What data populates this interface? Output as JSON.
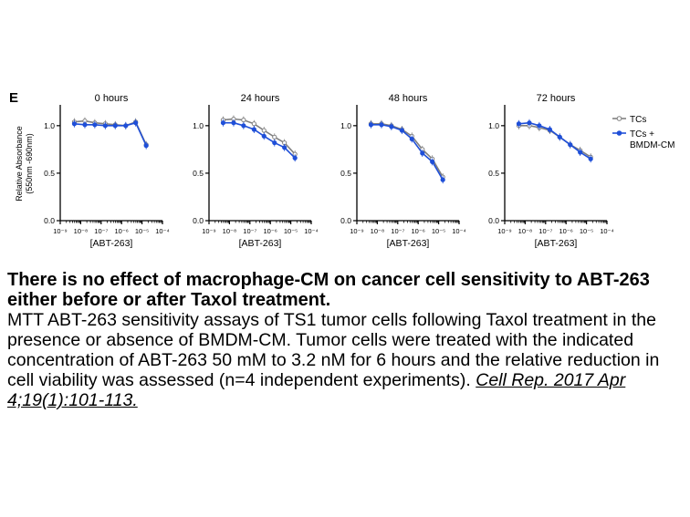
{
  "panel_label": "E",
  "chart_data": [
    {
      "type": "line",
      "title": "0 hours",
      "xlabel": "[ABT-263]",
      "ylabel": "Relative Absorbance (550nm -690nm)",
      "xscale": "log",
      "xlim": [
        1e-09,
        0.0001
      ],
      "ylim": [
        0,
        1.2
      ],
      "x_tick_labels": [
        "10⁻⁹",
        "10⁻⁸",
        "10⁻⁷",
        "10⁻⁶",
        "10⁻⁵",
        "10⁻⁴"
      ],
      "y_tick_labels": [
        "0.0",
        "0.5",
        "1.0"
      ],
      "series": [
        {
          "name": "TCs",
          "color": "#808080",
          "marker": "open-circle",
          "points": [
            [
              4.9e-09,
              1.04
            ],
            [
              1.6e-08,
              1.05
            ],
            [
              4.9e-08,
              1.03
            ],
            [
              1.6e-07,
              1.02
            ],
            [
              4.9e-07,
              1.01
            ],
            [
              1.6e-06,
              1.0
            ],
            [
              4.9e-06,
              1.04
            ],
            [
              1.6e-05,
              0.8
            ]
          ]
        },
        {
          "name": "TCs + BMDM-CM",
          "color": "#1f4fd8",
          "marker": "filled-circle",
          "points": [
            [
              4.9e-09,
              1.02
            ],
            [
              1.6e-08,
              1.01
            ],
            [
              4.9e-08,
              1.01
            ],
            [
              1.6e-07,
              1.0
            ],
            [
              4.9e-07,
              1.0
            ],
            [
              1.6e-06,
              1.0
            ],
            [
              4.9e-06,
              1.03
            ],
            [
              1.6e-05,
              0.79
            ]
          ]
        }
      ]
    },
    {
      "type": "line",
      "title": "24 hours",
      "xlabel": "[ABT-263]",
      "ylabel": "",
      "xscale": "log",
      "xlim": [
        1e-09,
        0.0001
      ],
      "ylim": [
        0,
        1.2
      ],
      "x_tick_labels": [
        "10⁻⁹",
        "10⁻⁸",
        "10⁻⁷",
        "10⁻⁶",
        "10⁻⁵",
        "10⁻⁴"
      ],
      "y_tick_labels": [
        "0.0",
        "0.5",
        "1.0"
      ],
      "series": [
        {
          "name": "TCs",
          "color": "#808080",
          "marker": "open-circle",
          "points": [
            [
              4.9e-09,
              1.06
            ],
            [
              1.6e-08,
              1.07
            ],
            [
              4.9e-08,
              1.06
            ],
            [
              1.6e-07,
              1.02
            ],
            [
              4.9e-07,
              0.95
            ],
            [
              1.6e-06,
              0.88
            ],
            [
              4.9e-06,
              0.82
            ],
            [
              1.6e-05,
              0.7
            ]
          ]
        },
        {
          "name": "TCs + BMDM-CM",
          "color": "#1f4fd8",
          "marker": "filled-circle",
          "points": [
            [
              4.9e-09,
              1.03
            ],
            [
              1.6e-08,
              1.03
            ],
            [
              4.9e-08,
              1.0
            ],
            [
              1.6e-07,
              0.96
            ],
            [
              4.9e-07,
              0.89
            ],
            [
              1.6e-06,
              0.82
            ],
            [
              4.9e-06,
              0.77
            ],
            [
              1.6e-05,
              0.66
            ]
          ]
        }
      ]
    },
    {
      "type": "line",
      "title": "48 hours",
      "xlabel": "[ABT-263]",
      "ylabel": "",
      "xscale": "log",
      "xlim": [
        1e-09,
        0.0001
      ],
      "ylim": [
        0,
        1.2
      ],
      "x_tick_labels": [
        "10⁻⁹",
        "10⁻⁸",
        "10⁻⁷",
        "10⁻⁶",
        "10⁻⁵",
        "10⁻⁴"
      ],
      "y_tick_labels": [
        "0.0",
        "0.5",
        "1.0"
      ],
      "series": [
        {
          "name": "TCs",
          "color": "#808080",
          "marker": "open-circle",
          "points": [
            [
              4.9e-09,
              1.02
            ],
            [
              1.6e-08,
              1.02
            ],
            [
              4.9e-08,
              1.0
            ],
            [
              1.6e-07,
              0.96
            ],
            [
              4.9e-07,
              0.89
            ],
            [
              1.6e-06,
              0.75
            ],
            [
              4.9e-06,
              0.65
            ],
            [
              1.6e-05,
              0.46
            ]
          ]
        },
        {
          "name": "TCs + BMDM-CM",
          "color": "#1f4fd8",
          "marker": "filled-circle",
          "points": [
            [
              4.9e-09,
              1.01
            ],
            [
              1.6e-08,
              1.01
            ],
            [
              4.9e-08,
              0.99
            ],
            [
              1.6e-07,
              0.95
            ],
            [
              4.9e-07,
              0.86
            ],
            [
              1.6e-06,
              0.71
            ],
            [
              4.9e-06,
              0.62
            ],
            [
              1.6e-05,
              0.43
            ]
          ]
        }
      ]
    },
    {
      "type": "line",
      "title": "72 hours",
      "xlabel": "[ABT-263]",
      "ylabel": "",
      "xscale": "log",
      "xlim": [
        1e-09,
        0.0001
      ],
      "ylim": [
        0,
        1.2
      ],
      "x_tick_labels": [
        "10⁻⁹",
        "10⁻⁸",
        "10⁻⁷",
        "10⁻⁶",
        "10⁻⁵",
        "10⁻⁴"
      ],
      "y_tick_labels": [
        "0.0",
        "0.5",
        "1.0"
      ],
      "series": [
        {
          "name": "TCs",
          "color": "#808080",
          "marker": "open-circle",
          "points": [
            [
              4.9e-09,
              1.0
            ],
            [
              1.6e-08,
              1.0
            ],
            [
              4.9e-08,
              0.98
            ],
            [
              1.6e-07,
              0.95
            ],
            [
              4.9e-07,
              0.88
            ],
            [
              1.6e-06,
              0.8
            ],
            [
              4.9e-06,
              0.74
            ],
            [
              1.6e-05,
              0.67
            ]
          ]
        },
        {
          "name": "TCs + BMDM-CM",
          "color": "#1f4fd8",
          "marker": "filled-circle",
          "points": [
            [
              4.9e-09,
              1.02
            ],
            [
              1.6e-08,
              1.03
            ],
            [
              4.9e-08,
              1.0
            ],
            [
              1.6e-07,
              0.96
            ],
            [
              4.9e-07,
              0.88
            ],
            [
              1.6e-06,
              0.8
            ],
            [
              4.9e-06,
              0.72
            ],
            [
              1.6e-05,
              0.65
            ]
          ]
        }
      ]
    }
  ],
  "legend": {
    "placement": "right",
    "entries": [
      {
        "label_lines": [
          "TCs"
        ],
        "color": "#808080",
        "marker": "open-circle"
      },
      {
        "label_lines": [
          "TCs +",
          "BMDM-CM"
        ],
        "color": "#1f4fd8",
        "marker": "filled-circle"
      }
    ]
  },
  "caption": {
    "title": "There is no effect of macrophage-CM on cancer cell sensitivity to ABT-263 either before or after Taxol treatment.",
    "body": "MTT ABT-263 sensitivity assays of TS1 tumor cells following Taxol treatment in the presence or absence of BMDM-CM. Tumor cells were treated with the indicated concentration of ABT-263 50 mM to 3.2 nM for 6 hours and the relative reduction in cell viability was assessed (n=4 independent experiments).",
    "citation": "Cell Rep. 2017 Apr 4;19(1):101-113."
  }
}
